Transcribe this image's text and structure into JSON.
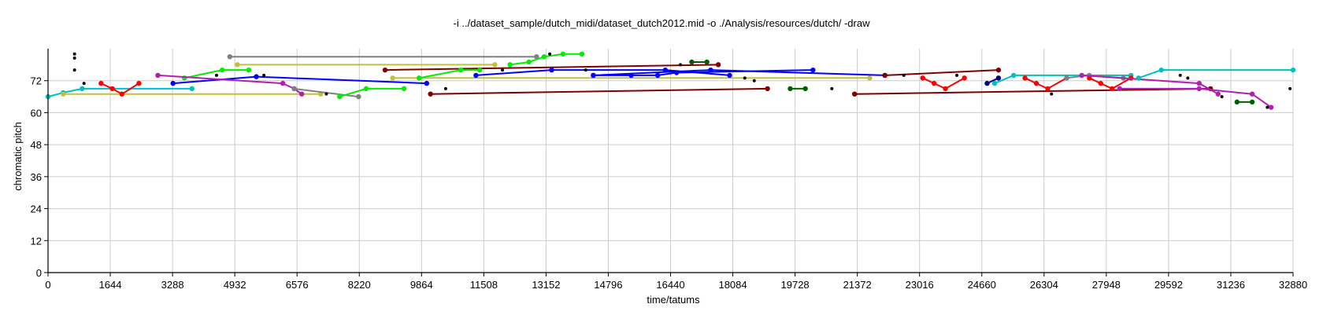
{
  "chart_data": {
    "type": "scatter",
    "title": "-i ../dataset_sample/dutch_midi/dataset_dutch2012.mid -o ./Analysis/resources/dutch/ -draw",
    "xlabel": "time/tatums",
    "ylabel": "chromatic pitch",
    "xlim": [
      0,
      32880
    ],
    "ylim": [
      0,
      84
    ],
    "xticks": [
      0,
      1644,
      3288,
      4932,
      6576,
      8220,
      9864,
      11508,
      13152,
      14796,
      16440,
      18084,
      19728,
      21372,
      23016,
      24660,
      26304,
      27948,
      29592,
      31236,
      32880
    ],
    "yticks": [
      0,
      12,
      24,
      36,
      48,
      60,
      72
    ],
    "grid": true,
    "series": [
      {
        "color": "#00c0c0",
        "points": [
          [
            0,
            66
          ],
          [
            400,
            67.5
          ],
          [
            900,
            69
          ],
          [
            3800,
            69
          ]
        ]
      },
      {
        "color": "#c0c040",
        "points": [
          [
            400,
            67
          ],
          [
            7200,
            67
          ]
        ]
      },
      {
        "color": "#ff0000",
        "points": [
          [
            1400,
            71
          ],
          [
            1700,
            69
          ],
          [
            1950,
            67
          ],
          [
            2400,
            71
          ]
        ]
      },
      {
        "color": "#0000ff",
        "points": [
          [
            3300,
            71
          ],
          [
            5500,
            73.5
          ],
          [
            10000,
            71
          ]
        ]
      },
      {
        "color": "#00ee00",
        "points": [
          [
            3600,
            73
          ],
          [
            4600,
            76
          ],
          [
            5300,
            76
          ]
        ]
      },
      {
        "color": "#b020b0",
        "points": [
          [
            2900,
            74
          ],
          [
            6200,
            71
          ],
          [
            6500,
            69
          ],
          [
            6700,
            67
          ]
        ]
      },
      {
        "color": "#808080",
        "points": [
          [
            4800,
            81
          ],
          [
            12900,
            81
          ]
        ]
      },
      {
        "color": "#c0c040",
        "points": [
          [
            5000,
            78
          ],
          [
            11800,
            78
          ]
        ]
      },
      {
        "color": "#808080",
        "points": [
          [
            6500,
            69
          ],
          [
            8200,
            66
          ]
        ]
      },
      {
        "color": "#00ee00",
        "points": [
          [
            7700,
            66
          ],
          [
            8400,
            69
          ],
          [
            9400,
            69
          ]
        ]
      },
      {
        "color": "#800000",
        "points": [
          [
            8900,
            76
          ],
          [
            17700,
            78
          ]
        ]
      },
      {
        "color": "#c0c040",
        "points": [
          [
            9100,
            73
          ],
          [
            21700,
            73
          ]
        ]
      },
      {
        "color": "#00ee00",
        "points": [
          [
            9800,
            73
          ],
          [
            10900,
            76
          ],
          [
            11400,
            76
          ]
        ]
      },
      {
        "color": "#800000",
        "points": [
          [
            10100,
            67
          ],
          [
            19000,
            69
          ]
        ]
      },
      {
        "color": "#00ee00",
        "points": [
          [
            12200,
            78
          ],
          [
            12700,
            79
          ],
          [
            13100,
            81
          ],
          [
            13600,
            82
          ],
          [
            14100,
            82
          ]
        ]
      },
      {
        "color": "#0000ff",
        "points": [
          [
            11300,
            74
          ],
          [
            13300,
            76
          ],
          [
            16300,
            76
          ],
          [
            18000,
            74
          ]
        ]
      },
      {
        "color": "#0000ff",
        "points": [
          [
            14400,
            74
          ],
          [
            17500,
            76
          ],
          [
            22100,
            74
          ]
        ]
      },
      {
        "color": "#0000ff",
        "points": [
          [
            14400,
            74
          ],
          [
            15400,
            74
          ],
          [
            16100,
            74
          ],
          [
            16600,
            75
          ],
          [
            20200,
            76
          ]
        ]
      },
      {
        "color": "#006000",
        "points": [
          [
            17000,
            79
          ],
          [
            17400,
            79
          ]
        ]
      },
      {
        "color": "#006000",
        "points": [
          [
            19600,
            69
          ],
          [
            20000,
            69
          ]
        ]
      },
      {
        "color": "#800000",
        "points": [
          [
            21300,
            67
          ],
          [
            30700,
            69
          ]
        ]
      },
      {
        "color": "#800000",
        "points": [
          [
            22100,
            74
          ],
          [
            25100,
            76
          ]
        ]
      },
      {
        "color": "#ff0000",
        "points": [
          [
            23100,
            73
          ],
          [
            23400,
            71
          ],
          [
            23700,
            69
          ],
          [
            24200,
            73
          ]
        ]
      },
      {
        "color": "#000080",
        "points": [
          [
            24800,
            71
          ],
          [
            25100,
            73
          ]
        ]
      },
      {
        "color": "#00c0c0",
        "points": [
          [
            25000,
            71
          ],
          [
            25500,
            74
          ],
          [
            28600,
            74
          ]
        ]
      },
      {
        "color": "#ff0000",
        "points": [
          [
            25800,
            73
          ],
          [
            26100,
            71
          ],
          [
            26400,
            69
          ],
          [
            26900,
            73
          ]
        ]
      },
      {
        "color": "#808080",
        "points": [
          [
            26900,
            73
          ],
          [
            27500,
            74
          ],
          [
            28400,
            73
          ]
        ]
      },
      {
        "color": "#ff0000",
        "points": [
          [
            27500,
            73
          ],
          [
            27800,
            71
          ],
          [
            28100,
            69
          ],
          [
            28600,
            73
          ]
        ]
      },
      {
        "color": "#b020b0",
        "points": [
          [
            27300,
            74
          ],
          [
            30400,
            71
          ],
          [
            30900,
            67
          ]
        ]
      },
      {
        "color": "#b020b0",
        "points": [
          [
            28300,
            69
          ],
          [
            30400,
            69
          ],
          [
            31800,
            67
          ],
          [
            32300,
            62
          ]
        ]
      },
      {
        "color": "#00c0c0",
        "points": [
          [
            28800,
            73
          ],
          [
            29400,
            76
          ],
          [
            32880,
            76
          ]
        ]
      },
      {
        "color": "#006000",
        "points": [
          [
            31400,
            64
          ],
          [
            31800,
            64
          ]
        ]
      },
      {
        "color": "#000000",
        "points": [
          [
            700,
            82
          ],
          [
            700,
            80.5
          ],
          [
            700,
            76
          ],
          [
            950,
            71
          ],
          [
            4450,
            74
          ],
          [
            5700,
            74
          ],
          [
            7350,
            67
          ],
          [
            10500,
            69
          ],
          [
            12000,
            76
          ],
          [
            13250,
            82
          ],
          [
            14200,
            76
          ],
          [
            16700,
            78
          ],
          [
            18400,
            73
          ],
          [
            18650,
            72
          ],
          [
            20700,
            69
          ],
          [
            22600,
            74
          ],
          [
            24000,
            74
          ],
          [
            26500,
            67
          ],
          [
            29900,
            74
          ],
          [
            30100,
            73
          ],
          [
            31000,
            66
          ],
          [
            32200,
            62
          ],
          [
            32800,
            69
          ]
        ]
      }
    ]
  }
}
